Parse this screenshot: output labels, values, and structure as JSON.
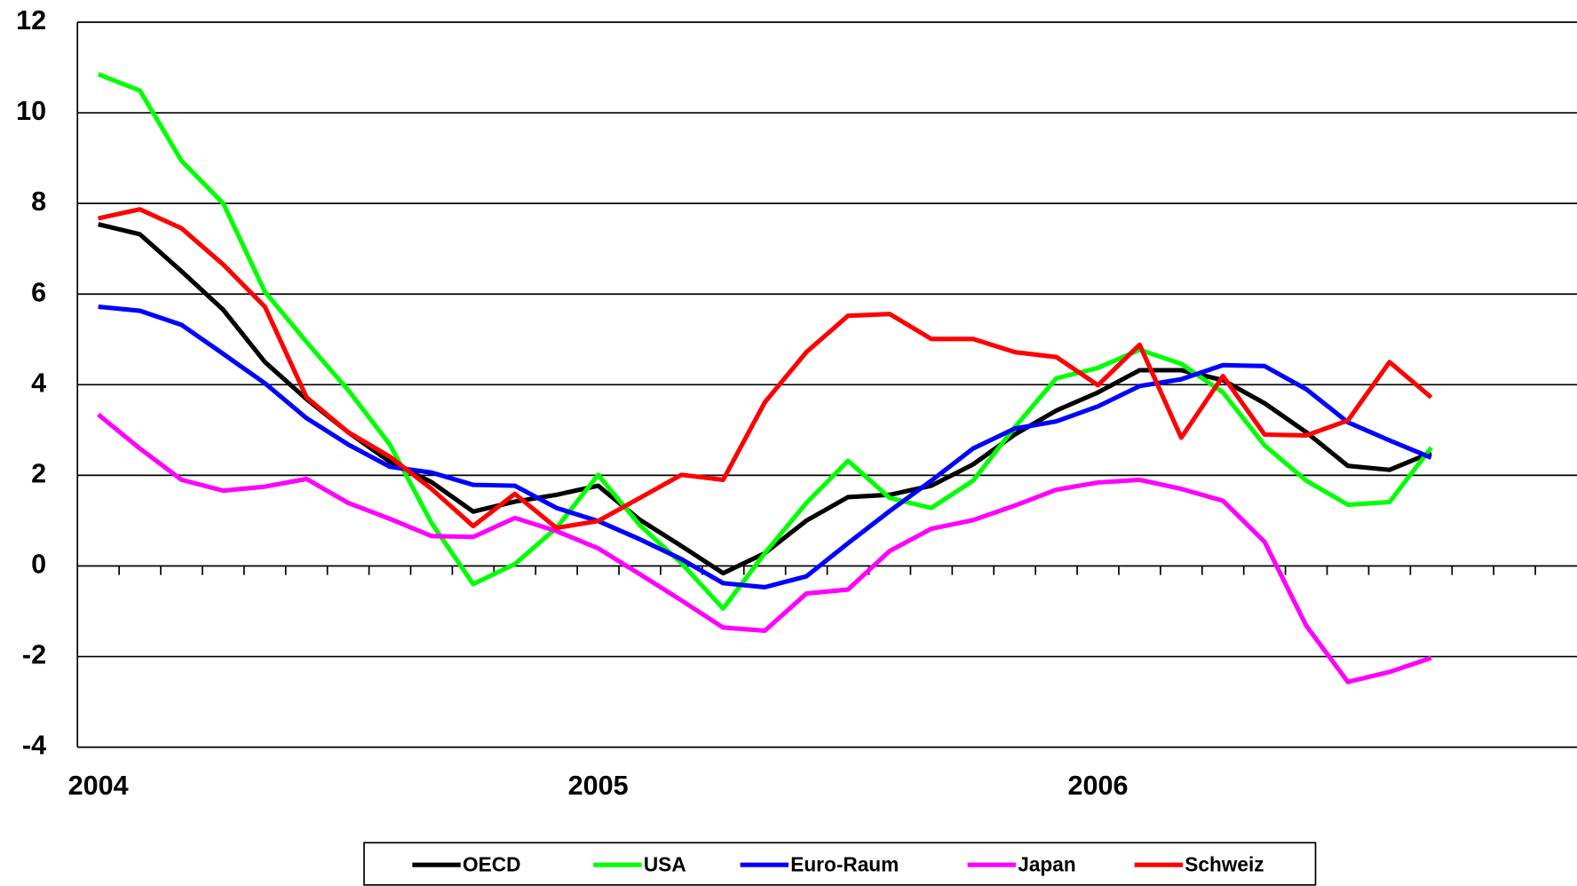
{
  "chart_data": {
    "type": "line",
    "categories": [
      "2004",
      null,
      null,
      null,
      null,
      null,
      null,
      null,
      null,
      null,
      null,
      null,
      "2005",
      null,
      null,
      null,
      null,
      null,
      null,
      null,
      null,
      null,
      null,
      null,
      "2006",
      null,
      null,
      null,
      null,
      null,
      null,
      null,
      null,
      null,
      null,
      null
    ],
    "series": [
      {
        "name": "OECD",
        "color": "#000000",
        "values": [
          7.54,
          7.32,
          6.5,
          5.65,
          4.5,
          3.68,
          2.95,
          2.3,
          1.85,
          1.2,
          1.42,
          1.57,
          1.77,
          1.02,
          0.44,
          -0.16,
          0.28,
          1.0,
          1.52,
          1.57,
          1.77,
          2.24,
          2.9,
          3.43,
          3.83,
          4.32,
          4.32,
          4.1,
          3.59,
          2.95,
          2.21,
          2.12,
          2.5,
          null,
          null,
          null
        ]
      },
      {
        "name": "USA",
        "color": "#00ff00",
        "values": [
          10.85,
          10.49,
          8.94,
          8.0,
          6.05,
          4.94,
          3.88,
          2.68,
          0.95,
          -0.4,
          0.04,
          0.84,
          2.01,
          0.9,
          0.06,
          -0.94,
          0.28,
          1.39,
          2.32,
          1.5,
          1.28,
          1.88,
          3.06,
          4.14,
          4.37,
          4.77,
          4.46,
          3.83,
          2.66,
          1.88,
          1.35,
          1.41,
          2.61,
          null,
          null,
          null
        ]
      },
      {
        "name": "Euro-Raum",
        "color": "#0000ff",
        "values": [
          5.72,
          5.63,
          5.32,
          4.68,
          4.03,
          3.26,
          2.68,
          2.19,
          2.06,
          1.79,
          1.77,
          1.28,
          0.99,
          0.59,
          0.15,
          -0.38,
          -0.47,
          -0.23,
          0.5,
          1.21,
          1.88,
          2.59,
          3.03,
          3.19,
          3.52,
          3.97,
          4.12,
          4.43,
          4.41,
          3.9,
          3.17,
          2.77,
          2.39,
          null,
          null,
          null
        ]
      },
      {
        "name": "Japan",
        "color": "#ff00ff",
        "values": [
          3.34,
          2.59,
          1.9,
          1.66,
          1.75,
          1.92,
          1.39,
          1.04,
          0.66,
          0.64,
          1.06,
          0.77,
          0.39,
          -0.18,
          -0.76,
          -1.36,
          -1.43,
          -0.61,
          -0.52,
          0.33,
          0.82,
          1.01,
          1.33,
          1.68,
          1.84,
          1.9,
          1.7,
          1.44,
          0.53,
          -1.32,
          -2.56,
          -2.34,
          -2.03,
          null,
          null,
          null
        ]
      },
      {
        "name": "Schweiz",
        "color": "#ff0000",
        "values": [
          7.67,
          7.87,
          7.45,
          6.65,
          5.72,
          3.72,
          2.95,
          2.41,
          1.7,
          0.88,
          1.59,
          0.84,
          0.99,
          1.5,
          2.01,
          1.9,
          3.61,
          4.72,
          5.52,
          5.56,
          5.01,
          5.01,
          4.72,
          4.61,
          3.99,
          4.88,
          2.83,
          4.19,
          2.9,
          2.88,
          3.21,
          4.5,
          3.72,
          null,
          null,
          null
        ]
      }
    ],
    "ylim": [
      -4,
      12
    ],
    "yticks": [
      -4,
      -2,
      0,
      2,
      4,
      6,
      8,
      10,
      12
    ],
    "grid": true,
    "legend": "bottom"
  }
}
